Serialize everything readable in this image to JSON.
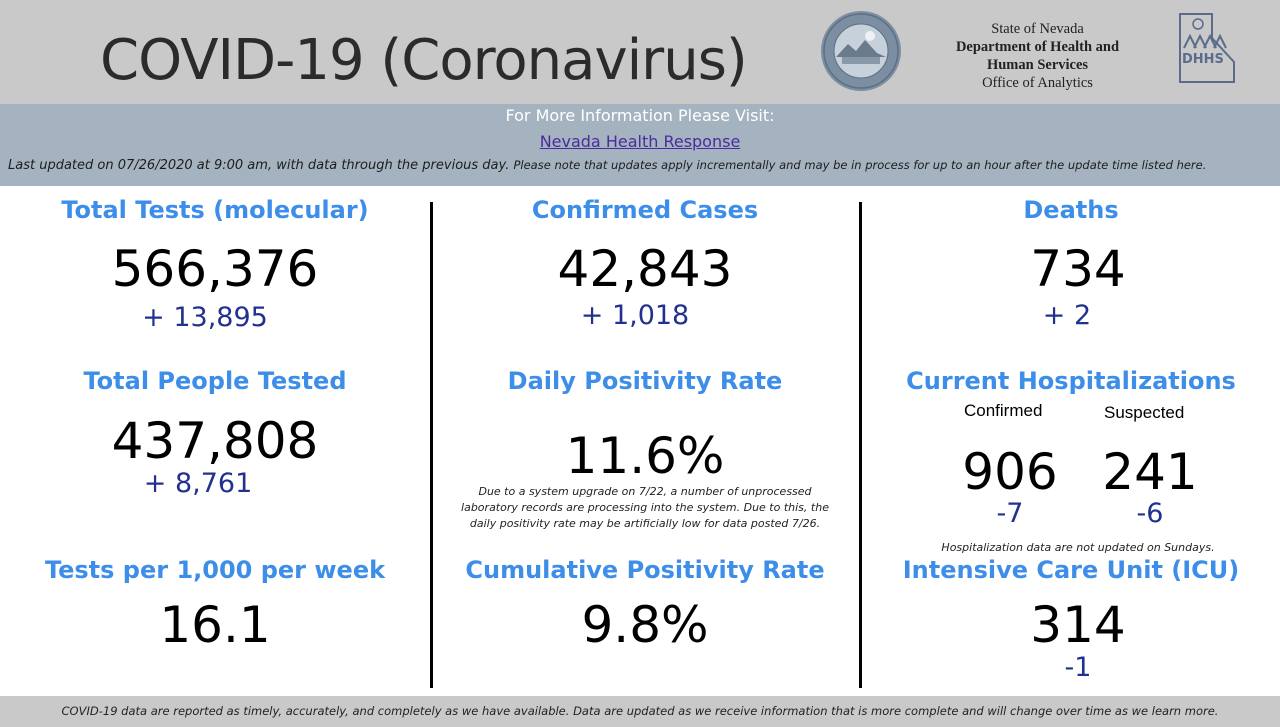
{
  "header": {
    "title": "COVID-19 (Coronavirus)",
    "agency": {
      "line1": "State of Nevada",
      "line2": "Department of Health and",
      "line3": "Human Services",
      "line4": "Office of Analytics"
    },
    "seal_icon": "nevada-state-seal-icon",
    "logo_icon": "dhhs-logo-icon"
  },
  "info": {
    "visit_text": "For More Information Please Visit:",
    "link_text": "Nevada Health Response",
    "updated_text": "Last updated on 07/26/2020 at 9:00 am, with data through the previous day.",
    "note_text": "Please note that updates apply incrementally and may be in process for up to an hour after the update time listed here."
  },
  "tiles": {
    "total_tests": {
      "label": "Total Tests (molecular)",
      "value": "566,376",
      "plus": "+",
      "delta": "13,895"
    },
    "confirmed_cases": {
      "label": "Confirmed Cases",
      "value": "42,843",
      "delta": "+ 1,018"
    },
    "deaths": {
      "label": "Deaths",
      "value": "734",
      "delta": "+ 2"
    },
    "people_tested": {
      "label": "Total People Tested",
      "value": "437,808",
      "plus": "+",
      "delta": "8,761"
    },
    "daily_positivity": {
      "label": "Daily Positivity Rate",
      "value": "11.6%",
      "note_line1": "Due to a system upgrade on 7/22, a number of unprocessed",
      "note_line2": "laboratory records are processing into the system.  Due to this, the",
      "note_line3": "daily positivity rate may be artificially low for data posted 7/26."
    },
    "hospitalizations": {
      "label": "Current Hospitalizations",
      "confirmed_label": "Confirmed",
      "suspected_label": "Suspected",
      "confirmed_value": "906",
      "suspected_value": "241",
      "confirmed_delta": "-7",
      "suspected_delta": "-6",
      "note": "Hospitalization data are not updated on Sundays."
    },
    "tests_per_1000": {
      "label": "Tests per 1,000 per week",
      "value": "16.1"
    },
    "cumulative_positivity": {
      "label": "Cumulative Positivity Rate",
      "value": "9.8%"
    },
    "icu": {
      "label": "Intensive Care Unit (ICU)",
      "value": "314",
      "delta": "-1"
    }
  },
  "footer": {
    "text": "COVID-19 data are reported as timely, accurately, and completely as we have available.  Data are updated as we receive information that is more complete and will change over time as we learn more."
  },
  "colors": {
    "header_bg": "#c9c9c9",
    "info_bg": "#a4b3bf",
    "label_blue": "#3d8ee8",
    "delta_navy": "#22318e",
    "link_purple": "#4b2ba0"
  }
}
